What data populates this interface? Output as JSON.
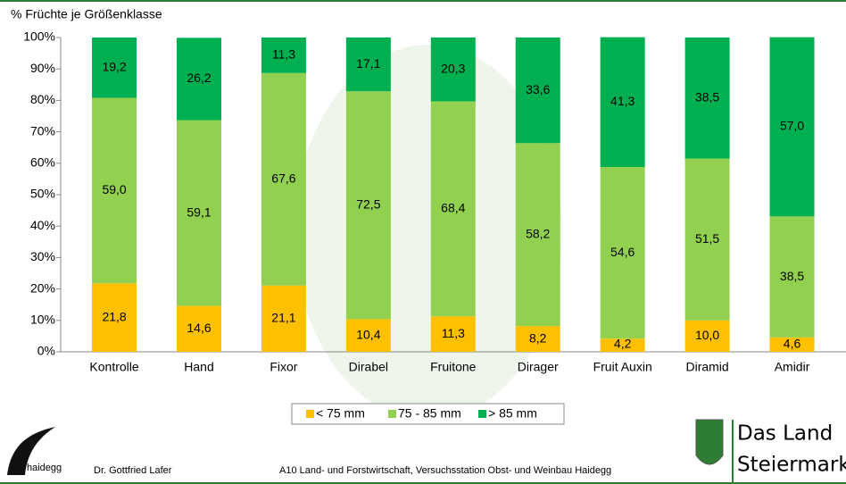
{
  "chart_data": {
    "type": "stacked_bar",
    "y_label": "% Früchte je Größenklasse",
    "categories": [
      "Kontrolle",
      "Hand",
      "Fixor",
      "Dirabel",
      "Fruitone",
      "Dirager",
      "Fruit Auxin",
      "Diramid",
      "Amidir"
    ],
    "series": [
      {
        "name": "< 75 mm",
        "color": "#FFC000",
        "values": [
          21.8,
          14.6,
          21.1,
          10.4,
          11.3,
          8.2,
          4.2,
          10.0,
          4.6
        ],
        "value_labels": [
          "21,8",
          "14,6",
          "21,1",
          "10,4",
          "11,3",
          "8,2",
          "4,2",
          "10,0",
          "4,6"
        ]
      },
      {
        "name": "75 - 85 mm",
        "color": "#92D050",
        "values": [
          59.0,
          59.1,
          67.6,
          72.5,
          68.4,
          58.2,
          54.6,
          51.5,
          38.5
        ],
        "value_labels": [
          "59,0",
          "59,1",
          "67,6",
          "72,5",
          "68,4",
          "58,2",
          "54,6",
          "51,5",
          "38,5"
        ]
      },
      {
        "name": "> 85 mm",
        "color": "#00B050",
        "values": [
          19.2,
          26.2,
          11.3,
          17.1,
          20.3,
          33.6,
          41.3,
          38.5,
          57.0
        ],
        "value_labels": [
          "19,2",
          "26,2",
          "11,3",
          "17,1",
          "20,3",
          "33,6",
          "41,3",
          "38,5",
          "57,0"
        ]
      }
    ],
    "ylim": [
      0,
      100
    ],
    "yticks": [
      {
        "value": 0,
        "label": "0%"
      },
      {
        "value": 10,
        "label": "10%"
      },
      {
        "value": 20,
        "label": "20%"
      },
      {
        "value": 30,
        "label": "30%"
      },
      {
        "value": 40,
        "label": "40%"
      },
      {
        "value": 50,
        "label": "50%"
      },
      {
        "value": 60,
        "label": "60%"
      },
      {
        "value": 70,
        "label": "70%"
      },
      {
        "value": 80,
        "label": "80%"
      },
      {
        "value": 90,
        "label": "90%"
      },
      {
        "value": 100,
        "label": "100%"
      }
    ]
  },
  "footer": {
    "brand": "haidegg",
    "author": "Dr. Gottfried Lafer",
    "institution": "A10 Land- und Forstwirtschaft, Versuchsstation Obst- und Weinbau Haidegg",
    "logo_line1": "Das Land",
    "logo_line2": "Steiermark"
  }
}
